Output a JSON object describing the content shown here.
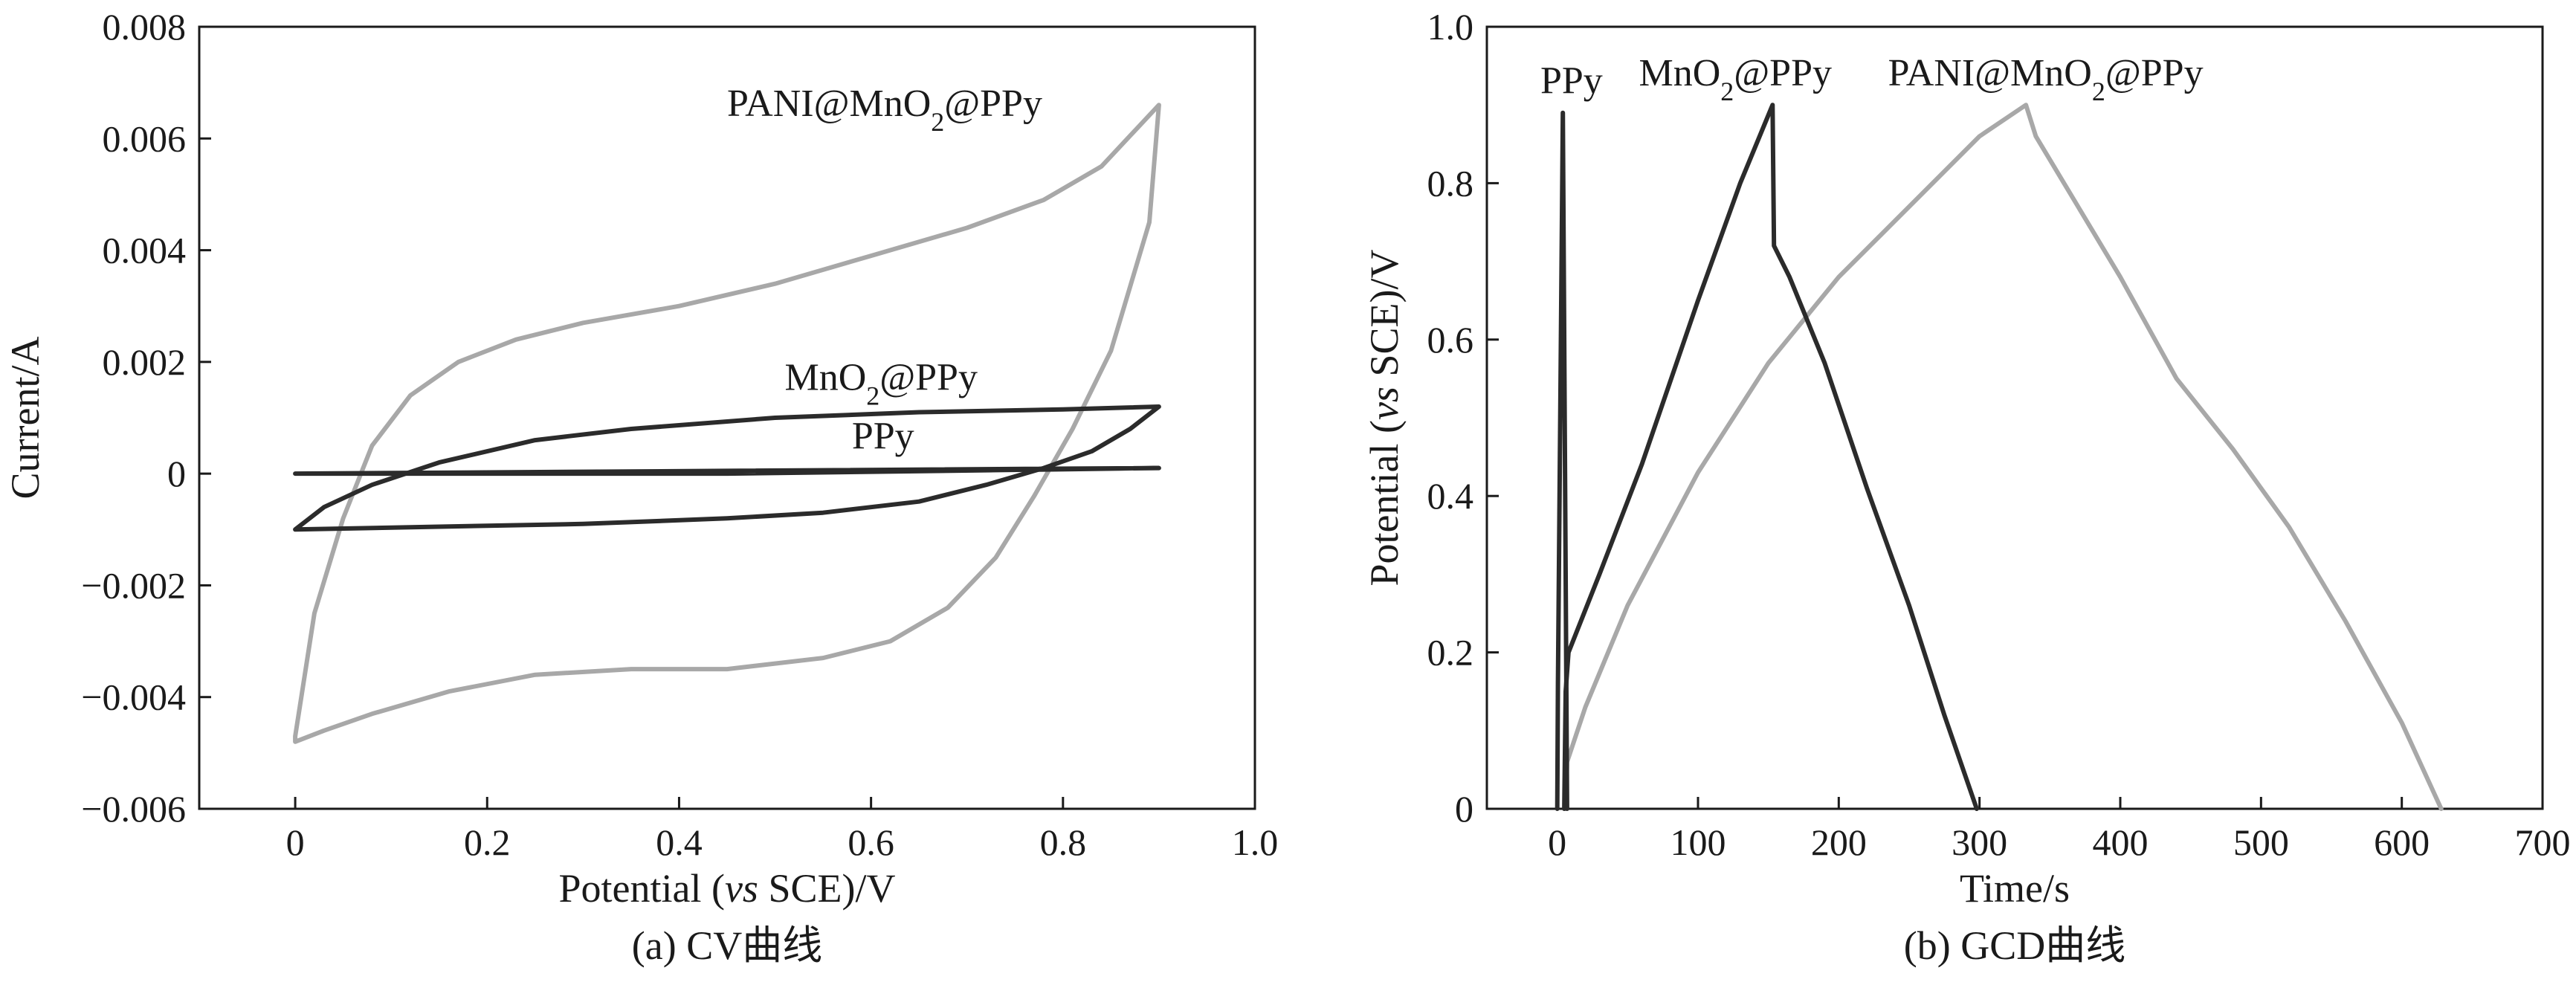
{
  "colors": {
    "ppy": "#2b2b2b",
    "mno2_ppy": "#2b2b2b",
    "pani_mno2_ppy": "#a8a8a8",
    "axis": "#1a1a1a"
  },
  "chart_data": [
    {
      "id": "cv",
      "type": "line",
      "title": "",
      "caption": "(a) CV曲线",
      "xlabel": "Potential (vs SCE)/V",
      "xlabel_parts": {
        "pre": "Potential (",
        "italic": "vs",
        "post": " SCE)/V"
      },
      "ylabel": "Current/A",
      "xlim": [
        -0.1,
        1.0
      ],
      "ylim": [
        -0.006,
        0.008
      ],
      "x_ticks": [
        0,
        0.2,
        0.4,
        0.6,
        0.8,
        1.0
      ],
      "x_tick_labels": [
        "0",
        "0.2",
        "0.4",
        "0.6",
        "0.8",
        "1.0"
      ],
      "y_ticks": [
        -0.006,
        -0.004,
        -0.002,
        0,
        0.002,
        0.004,
        0.006,
        0.008
      ],
      "y_tick_labels": [
        "−0.006",
        "−0.004",
        "−0.002",
        "0",
        "0.002",
        "0.004",
        "0.006",
        "0.008"
      ],
      "grid": false,
      "annotations": [
        {
          "series": "pani",
          "pre": "PANI@MnO",
          "sub": "2",
          "post": "@PPy",
          "x": 0.45,
          "y": 0.0064
        },
        {
          "series": "mno2",
          "pre": "MnO",
          "sub": "2",
          "post": "@PPy",
          "x": 0.51,
          "y": 0.0015
        },
        {
          "series": "ppy",
          "pre": "PPy",
          "sub": "",
          "post": "",
          "x": 0.58,
          "y": 0.00045
        }
      ],
      "series": [
        {
          "name": "PANI@MnO2@PPy",
          "color_key": "pani_mno2_ppy",
          "closed": true,
          "points": [
            [
              0,
              -0.0047
            ],
            [
              0.02,
              -0.0025
            ],
            [
              0.05,
              -0.0008
            ],
            [
              0.08,
              0.0005
            ],
            [
              0.12,
              0.0014
            ],
            [
              0.17,
              0.002
            ],
            [
              0.23,
              0.0024
            ],
            [
              0.3,
              0.0027
            ],
            [
              0.4,
              0.003
            ],
            [
              0.5,
              0.0034
            ],
            [
              0.6,
              0.0039
            ],
            [
              0.7,
              0.0044
            ],
            [
              0.78,
              0.0049
            ],
            [
              0.84,
              0.0055
            ],
            [
              0.9,
              0.0066
            ],
            [
              0.89,
              0.0045
            ],
            [
              0.85,
              0.0022
            ],
            [
              0.81,
              0.0008
            ],
            [
              0.77,
              -0.0004
            ],
            [
              0.73,
              -0.0015
            ],
            [
              0.68,
              -0.0024
            ],
            [
              0.62,
              -0.003
            ],
            [
              0.55,
              -0.0033
            ],
            [
              0.45,
              -0.0035
            ],
            [
              0.35,
              -0.0035
            ],
            [
              0.25,
              -0.0036
            ],
            [
              0.16,
              -0.0039
            ],
            [
              0.08,
              -0.0043
            ],
            [
              0.03,
              -0.0046
            ],
            [
              0,
              -0.0048
            ]
          ]
        },
        {
          "name": "MnO2@PPy",
          "color_key": "mno2_ppy",
          "closed": true,
          "points": [
            [
              0,
              -0.001
            ],
            [
              0.03,
              -0.0006
            ],
            [
              0.08,
              -0.0002
            ],
            [
              0.15,
              0.0002
            ],
            [
              0.25,
              0.0006
            ],
            [
              0.35,
              0.0008
            ],
            [
              0.5,
              0.001
            ],
            [
              0.65,
              0.0011
            ],
            [
              0.8,
              0.00115
            ],
            [
              0.9,
              0.0012
            ],
            [
              0.87,
              0.0008
            ],
            [
              0.83,
              0.0004
            ],
            [
              0.78,
              0.0001
            ],
            [
              0.72,
              -0.0002
            ],
            [
              0.65,
              -0.0005
            ],
            [
              0.55,
              -0.0007
            ],
            [
              0.45,
              -0.0008
            ],
            [
              0.3,
              -0.0009
            ],
            [
              0.15,
              -0.00095
            ],
            [
              0,
              -0.001
            ]
          ]
        },
        {
          "name": "PPy",
          "color_key": "ppy",
          "closed": true,
          "points": [
            [
              0,
              0
            ],
            [
              0.45,
              0
            ],
            [
              0.9,
              0.0001
            ],
            [
              0.45,
              5e-05
            ],
            [
              0,
              0
            ]
          ]
        }
      ]
    },
    {
      "id": "gcd",
      "type": "line",
      "title": "",
      "caption": "(b) GCD曲线",
      "xlabel": "Time/s",
      "ylabel": "Potential (vs SCE)/V",
      "ylabel_parts": {
        "pre": "Potential (",
        "italic": "vs",
        "post": " SCE)/V"
      },
      "xlim": [
        -50,
        700
      ],
      "ylim": [
        0,
        1.0
      ],
      "x_ticks": [
        0,
        100,
        200,
        300,
        400,
        500,
        600,
        700
      ],
      "x_tick_labels": [
        "0",
        "100",
        "200",
        "300",
        "400",
        "500",
        "600",
        "700"
      ],
      "y_ticks": [
        0,
        0.2,
        0.4,
        0.6,
        0.8,
        1.0
      ],
      "y_tick_labels": [
        "0",
        "0.2",
        "0.4",
        "0.6",
        "0.8",
        "1.0"
      ],
      "grid": false,
      "annotations": [
        {
          "series": "ppy",
          "pre": "PPy",
          "sub": "",
          "post": "",
          "x": -12,
          "y": 0.915
        },
        {
          "series": "mno2",
          "pre": "MnO",
          "sub": "2",
          "post": "@PPy",
          "x": 58,
          "y": 0.925
        },
        {
          "series": "pani",
          "pre": "PANI@MnO",
          "sub": "2",
          "post": "@PPy",
          "x": 235,
          "y": 0.925
        }
      ],
      "series": [
        {
          "name": "PANI@MnO2@PPy",
          "color_key": "pani_mno2_ppy",
          "closed": false,
          "points": [
            [
              6,
              0
            ],
            [
              7,
              0.06
            ],
            [
              20,
              0.13
            ],
            [
              50,
              0.26
            ],
            [
              100,
              0.43
            ],
            [
              150,
              0.57
            ],
            [
              200,
              0.68
            ],
            [
              250,
              0.77
            ],
            [
              300,
              0.86
            ],
            [
              333,
              0.9
            ],
            [
              340,
              0.86
            ],
            [
              360,
              0.8
            ],
            [
              400,
              0.68
            ],
            [
              440,
              0.55
            ],
            [
              480,
              0.46
            ],
            [
              520,
              0.36
            ],
            [
              560,
              0.24
            ],
            [
              600,
              0.11
            ],
            [
              628,
              0
            ]
          ]
        },
        {
          "name": "MnO2@PPy",
          "color_key": "mno2_ppy",
          "closed": false,
          "points": [
            [
              5,
              0
            ],
            [
              6,
              0.15
            ],
            [
              8,
              0.2
            ],
            [
              30,
              0.3
            ],
            [
              60,
              0.44
            ],
            [
              100,
              0.65
            ],
            [
              130,
              0.8
            ],
            [
              153,
              0.9
            ],
            [
              154,
              0.72
            ],
            [
              165,
              0.68
            ],
            [
              190,
              0.57
            ],
            [
              220,
              0.41
            ],
            [
              250,
              0.26
            ],
            [
              275,
              0.12
            ],
            [
              298,
              0
            ]
          ]
        },
        {
          "name": "PPy",
          "color_key": "ppy",
          "closed": false,
          "points": [
            [
              0,
              0
            ],
            [
              0.5,
              0.16
            ],
            [
              4,
              0.89
            ],
            [
              7,
              0
            ]
          ]
        }
      ]
    }
  ]
}
